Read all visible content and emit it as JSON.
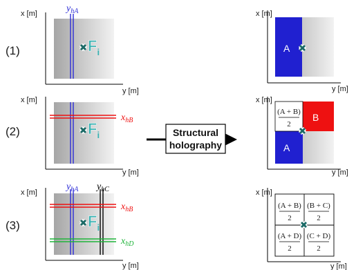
{
  "rows": {
    "r1": "(1)",
    "r2": "(2)",
    "r3": "(3)"
  },
  "axes": {
    "x": "x [m]",
    "y": "y [m]"
  },
  "force": {
    "main": "F",
    "sub": "i"
  },
  "lines": {
    "yhA": {
      "main": "y",
      "sub": "hA"
    },
    "yhC": {
      "main": "y",
      "sub": "hC"
    },
    "xhB": {
      "main": "x",
      "sub": "hB"
    },
    "xhD": {
      "main": "x",
      "sub": "hD"
    }
  },
  "zones": {
    "A": "A",
    "B": "B"
  },
  "fractions": {
    "AB": "(A + B)",
    "BC": "(B + C)",
    "AD": "(A + D)",
    "CD": "(C + D)",
    "den": "2"
  },
  "process": {
    "line1": "Structural",
    "line2": "holography"
  },
  "colors": {
    "blue": "#2b2bd6",
    "red": "#ee1111",
    "green": "#1fb43a",
    "teal": "#3bb3b3",
    "black": "#000000"
  }
}
